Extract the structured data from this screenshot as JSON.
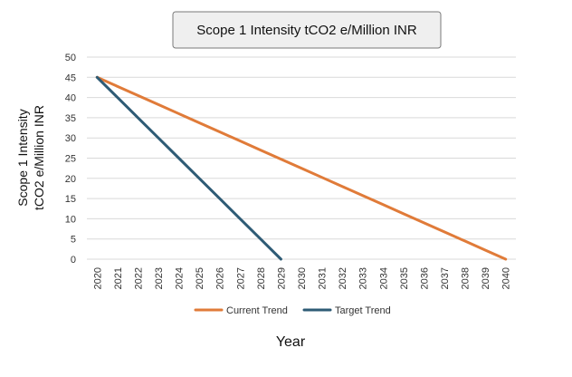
{
  "chart_data": {
    "type": "line",
    "title": "Scope 1 Intensity tCO2 e/Million INR",
    "xlabel": "Year",
    "ylabel": [
      "Scope 1 Intensity",
      "tCO2 e/Million INR"
    ],
    "x": [
      "2020",
      "2021",
      "2022",
      "2023",
      "2024",
      "2025",
      "2026",
      "2027",
      "2028",
      "2029",
      "2030",
      "2031",
      "2032",
      "2033",
      "2034",
      "2035",
      "2036",
      "2037",
      "2038",
      "2039",
      "2040"
    ],
    "ylim": [
      0,
      50
    ],
    "yticks": [
      "0",
      "5",
      "10",
      "15",
      "20",
      "25",
      "30",
      "35",
      "40",
      "45",
      "50"
    ],
    "grid": true,
    "legend_position": "bottom",
    "series": [
      {
        "name": "Current Trend",
        "color": "#e07b39",
        "values": [
          45,
          42.75,
          40.5,
          38.25,
          36,
          33.75,
          31.5,
          29.25,
          27,
          24.75,
          22.5,
          20.25,
          18,
          15.75,
          13.5,
          11.25,
          9,
          6.75,
          4.5,
          2.25,
          0
        ]
      },
      {
        "name": "Target Trend",
        "color": "#2e5b75",
        "values": [
          45,
          40,
          35,
          30,
          25,
          20,
          15,
          10,
          5,
          0,
          null,
          null,
          null,
          null,
          null,
          null,
          null,
          null,
          null,
          null,
          null
        ]
      }
    ]
  }
}
